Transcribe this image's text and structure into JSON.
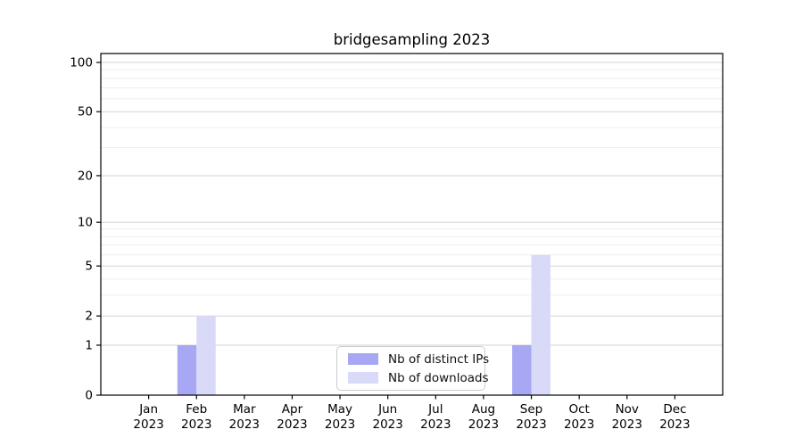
{
  "title": "bridgesampling 2023",
  "chart_data": {
    "type": "bar",
    "title": "bridgesampling 2023",
    "categories": [
      "Jan 2023",
      "Feb 2023",
      "Mar 2023",
      "Apr 2023",
      "May 2023",
      "Jun 2023",
      "Jul 2023",
      "Aug 2023",
      "Sep 2023",
      "Oct 2023",
      "Nov 2023",
      "Dec 2023"
    ],
    "series": [
      {
        "name": "Nb of distinct IPs",
        "color": "#a7a7f3",
        "values": [
          0,
          1,
          0,
          0,
          0,
          0,
          0,
          0,
          1,
          0,
          0,
          0
        ]
      },
      {
        "name": "Nb of downloads",
        "color": "#d9d9f8",
        "values": [
          0,
          2,
          0,
          0,
          0,
          0,
          0,
          0,
          6,
          0,
          0,
          0
        ]
      }
    ],
    "xlabel": "",
    "ylabel": "",
    "yscale": "log1p",
    "yticks": [
      0,
      1,
      2,
      5,
      10,
      20,
      50,
      100
    ],
    "ytick_labels": [
      "0",
      "1",
      "2",
      "5",
      "10",
      "20",
      "50",
      "100"
    ],
    "minor_yticks": [
      3,
      4,
      6,
      7,
      8,
      9,
      30,
      40,
      60,
      70,
      80,
      90
    ],
    "ylim": [
      0,
      113
    ],
    "bar_mode": "grouped",
    "grid": "horizontal",
    "legend_position": "lower center"
  },
  "colors": {
    "background": "#ffffff",
    "major_grid": "#d3d3d3",
    "minor_grid": "#efefef",
    "spine": "#000000",
    "tick_text": "#000000"
  }
}
